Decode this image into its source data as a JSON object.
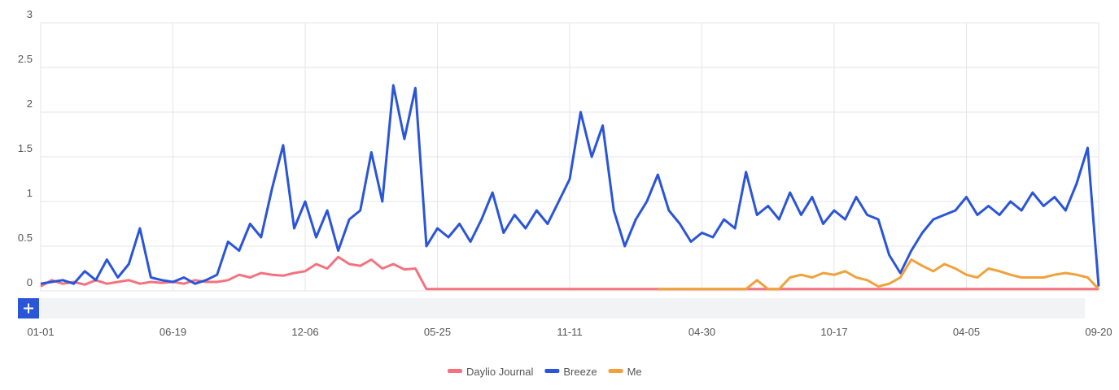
{
  "chart_data": {
    "type": "line",
    "categories": [
      "01-01",
      null,
      null,
      null,
      null,
      null,
      null,
      null,
      null,
      null,
      null,
      null,
      "06-19",
      null,
      null,
      null,
      null,
      null,
      null,
      null,
      null,
      null,
      null,
      null,
      "12-06",
      null,
      null,
      null,
      null,
      null,
      null,
      null,
      null,
      null,
      null,
      null,
      "05-25",
      null,
      null,
      null,
      null,
      null,
      null,
      null,
      null,
      null,
      null,
      null,
      "11-11",
      null,
      null,
      null,
      null,
      null,
      null,
      null,
      null,
      null,
      null,
      null,
      "04-30",
      null,
      null,
      null,
      null,
      null,
      null,
      null,
      null,
      null,
      null,
      null,
      "10-17",
      null,
      null,
      null,
      null,
      null,
      null,
      null,
      null,
      null,
      null,
      null,
      "04-05",
      null,
      null,
      null,
      null,
      null,
      null,
      null,
      null,
      null,
      null,
      null,
      "09-20"
    ],
    "series": [
      {
        "name": "Daylio Journal",
        "color": "#f4727f",
        "values": [
          0.05,
          0.12,
          0.08,
          0.1,
          0.07,
          0.12,
          0.08,
          0.1,
          0.12,
          0.08,
          0.1,
          0.09,
          0.1,
          0.08,
          0.12,
          0.1,
          0.1,
          0.12,
          0.18,
          0.15,
          0.2,
          0.18,
          0.17,
          0.2,
          0.22,
          0.3,
          0.25,
          0.38,
          0.3,
          0.28,
          0.35,
          0.25,
          0.3,
          0.24,
          0.25,
          0.02,
          0.02,
          0.02,
          0.02,
          0.02,
          0.02,
          0.02,
          0.02,
          0.02,
          0.02,
          0.02,
          0.02,
          0.02,
          0.02,
          0.02,
          0.02,
          0.02,
          0.02,
          0.02,
          0.02,
          0.02,
          0.02,
          0.02,
          0.02,
          0.02,
          0.02,
          0.02,
          0.02,
          0.02,
          0.02,
          0.02,
          0.02,
          0.02,
          0.02,
          0.02,
          0.02,
          0.02,
          0.02,
          0.02,
          0.02,
          0.02,
          0.02,
          0.02,
          0.02,
          0.02,
          0.02,
          0.02,
          0.02,
          0.02,
          0.02,
          0.02,
          0.02,
          0.02,
          0.02,
          0.02,
          0.02,
          0.02,
          0.02,
          0.02,
          0.02,
          0.02,
          0.02
        ]
      },
      {
        "name": "Breeze",
        "color": "#2b55d9",
        "values": [
          0.08,
          0.1,
          0.12,
          0.08,
          0.22,
          0.12,
          0.35,
          0.15,
          0.3,
          0.7,
          0.15,
          0.12,
          0.1,
          0.15,
          0.08,
          0.12,
          0.18,
          0.55,
          0.45,
          0.75,
          0.6,
          1.15,
          1.63,
          0.7,
          1.0,
          0.6,
          0.9,
          0.45,
          0.8,
          0.9,
          1.55,
          1.0,
          2.3,
          1.7,
          2.27,
          0.5,
          0.7,
          0.6,
          0.75,
          0.55,
          0.8,
          1.1,
          0.65,
          0.85,
          0.7,
          0.9,
          0.75,
          1.0,
          1.25,
          2.0,
          1.5,
          1.85,
          0.9,
          0.5,
          0.8,
          1.0,
          1.3,
          0.9,
          0.75,
          0.55,
          0.65,
          0.6,
          0.8,
          0.7,
          1.33,
          0.85,
          0.95,
          0.8,
          1.1,
          0.85,
          1.05,
          0.75,
          0.9,
          0.8,
          1.05,
          0.85,
          0.8,
          0.4,
          0.2,
          0.45,
          0.65,
          0.8,
          0.85,
          0.9,
          1.05,
          0.85,
          0.95,
          0.85,
          1.0,
          0.9,
          1.1,
          0.95,
          1.05,
          0.9,
          1.2,
          1.6,
          0.05
        ]
      },
      {
        "name": "Me",
        "color": "#f1a13a",
        "values": [
          null,
          null,
          null,
          null,
          null,
          null,
          null,
          null,
          null,
          null,
          null,
          null,
          null,
          null,
          null,
          null,
          null,
          null,
          null,
          null,
          null,
          null,
          null,
          null,
          null,
          null,
          null,
          null,
          null,
          null,
          null,
          null,
          null,
          null,
          null,
          null,
          null,
          null,
          null,
          null,
          null,
          null,
          null,
          null,
          null,
          null,
          null,
          null,
          null,
          null,
          null,
          null,
          null,
          null,
          null,
          null,
          0.02,
          0.02,
          0.02,
          0.02,
          0.02,
          0.02,
          0.02,
          0.02,
          0.02,
          0.12,
          0.02,
          0.02,
          0.15,
          0.18,
          0.15,
          0.2,
          0.18,
          0.22,
          0.15,
          0.12,
          0.05,
          0.08,
          0.15,
          0.35,
          0.28,
          0.22,
          0.3,
          0.25,
          0.18,
          0.15,
          0.25,
          0.22,
          0.18,
          0.15,
          0.15,
          0.15,
          0.18,
          0.2,
          0.18,
          0.15,
          0.02
        ]
      }
    ],
    "ylim": [
      0,
      3
    ],
    "yticks": [
      0,
      0.5,
      1,
      1.5,
      2,
      2.5,
      3
    ],
    "grid": true
  }
}
